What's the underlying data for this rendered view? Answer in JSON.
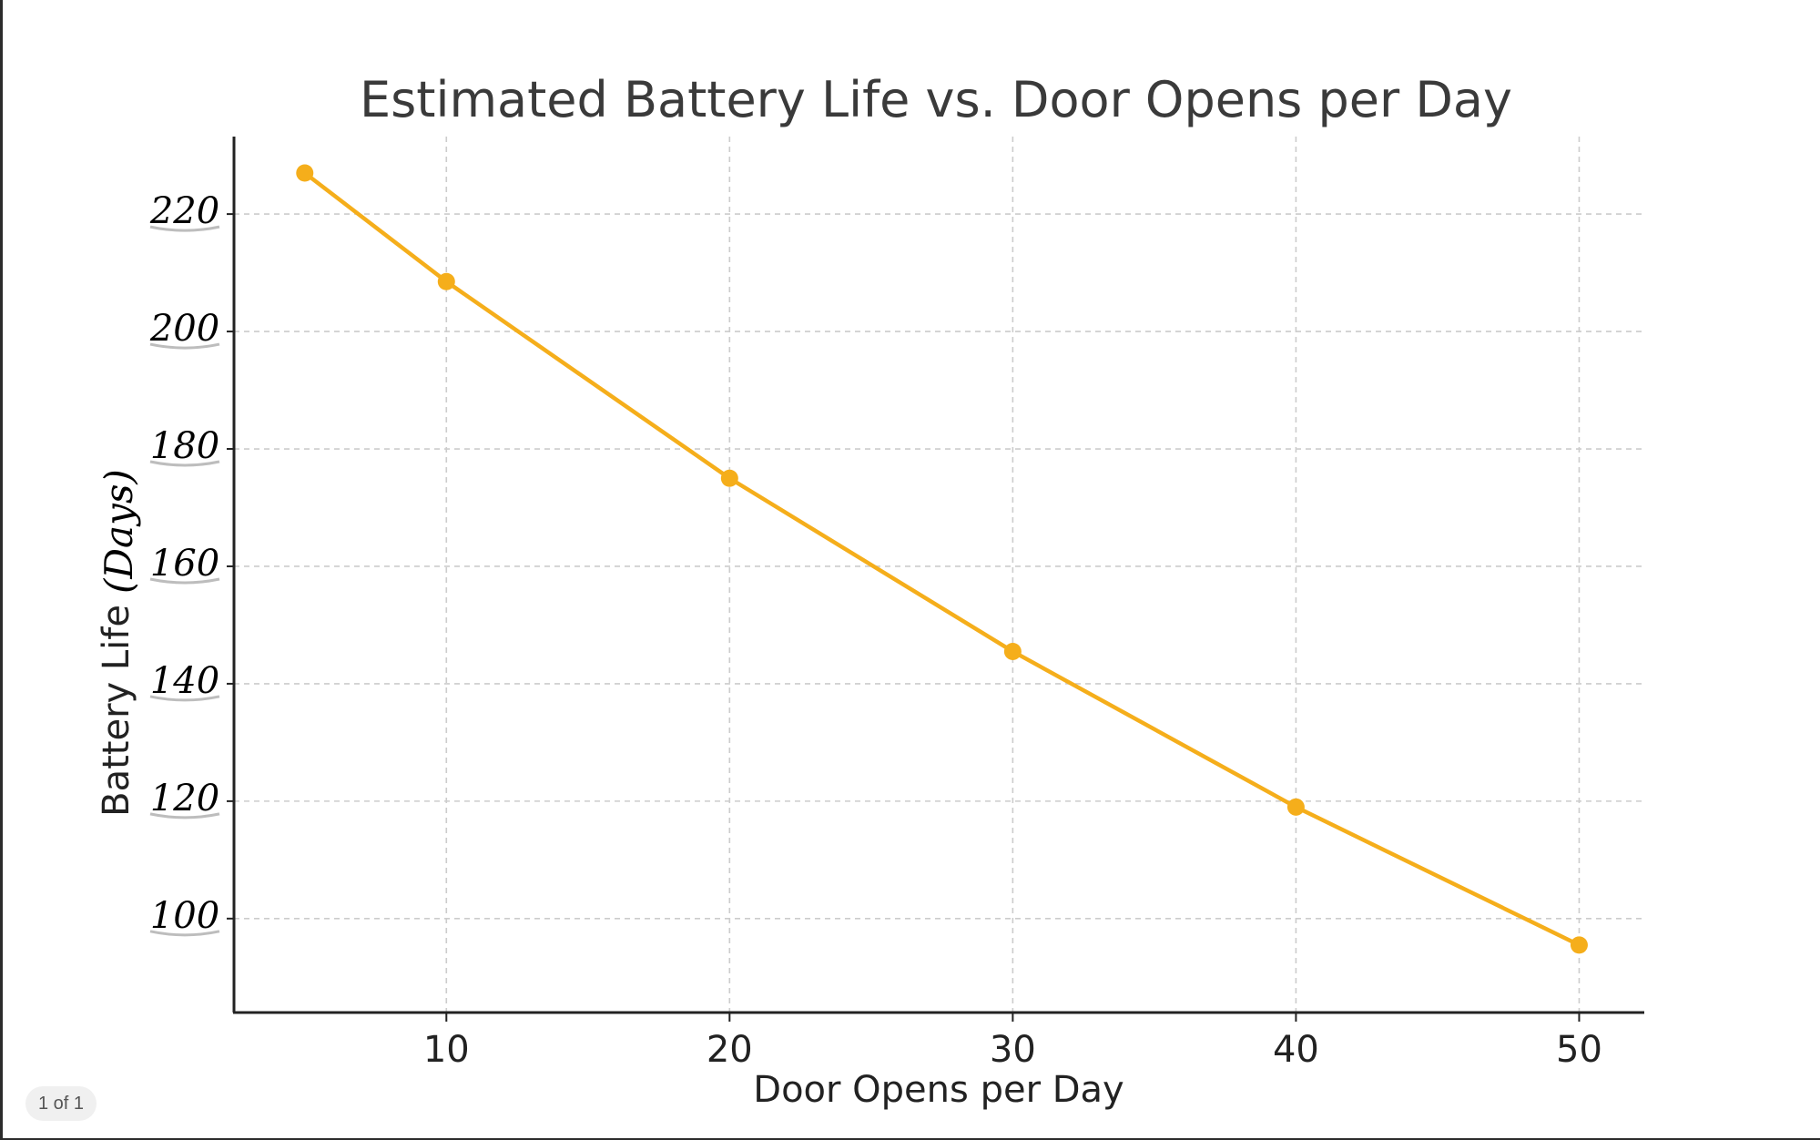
{
  "viewer": {
    "page_indicator": "1 of 1"
  },
  "chart_data": {
    "type": "line",
    "title": "Estimated Battery Life vs. Door Opens per Day",
    "xlabel": "Door Opens per Day",
    "ylabel_printed": "Battery Life",
    "ylabel_handwritten": "(Days)",
    "x": [
      5,
      10,
      20,
      30,
      40,
      50
    ],
    "series": [
      {
        "values": [
          227,
          208.5,
          175,
          145.5,
          119,
          95.5
        ],
        "color": "#f5ae1b"
      }
    ],
    "xticks": [
      10,
      20,
      30,
      40,
      50
    ],
    "yticks": [
      100,
      120,
      140,
      160,
      180,
      200,
      220
    ],
    "xlim": [
      2.5,
      52.3
    ],
    "ylim": [
      84,
      233.2
    ],
    "grid": true,
    "markers": true
  }
}
